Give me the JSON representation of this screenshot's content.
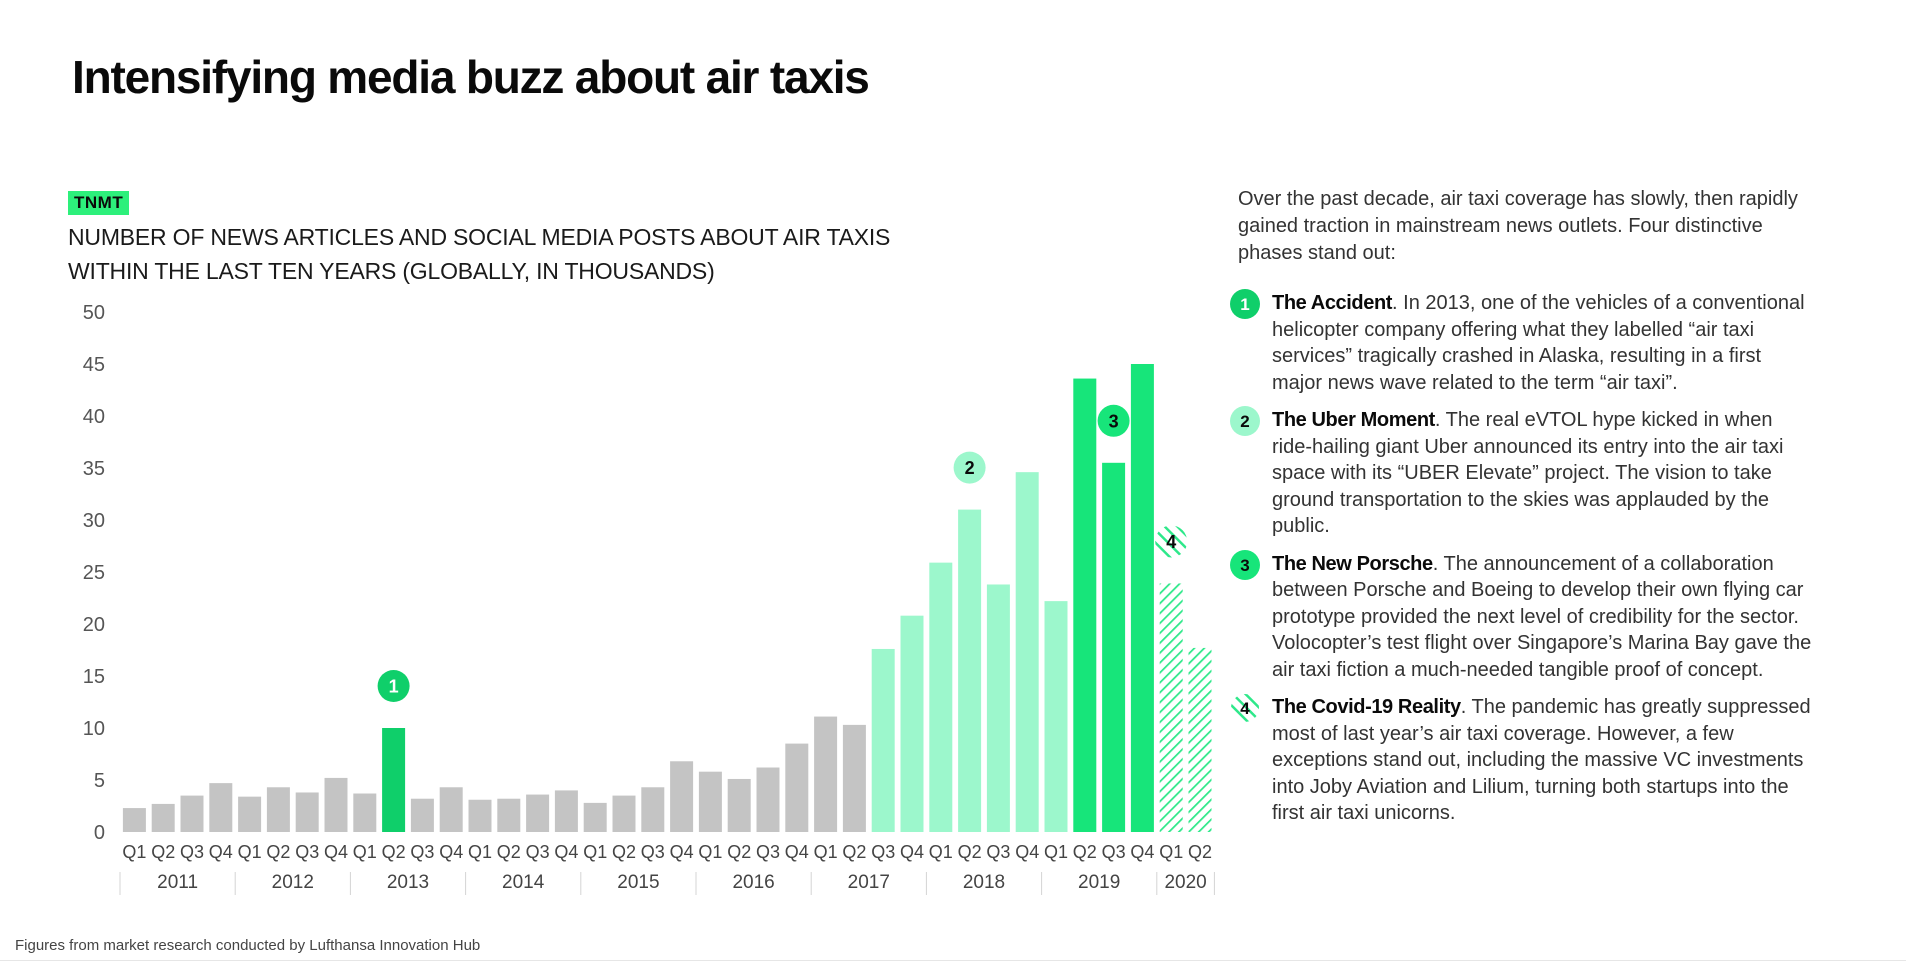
{
  "title": "Intensifying media buzz about air taxis",
  "brand": "TNMT",
  "colors": {
    "gray": "#c4c4c4",
    "phase1": "#0fcf6a",
    "phase2": "#9cf7cc",
    "phase3": "#17e57a",
    "phase4": "#2ee88a"
  },
  "chart_data": {
    "type": "bar",
    "title": "NUMBER OF NEWS ARTICLES AND SOCIAL MEDIA POSTS ABOUT AIR TAXIS WITHIN THE LAST TEN YEARS (GLOBALLY, IN THOUSANDS)",
    "ylim": [
      0,
      50
    ],
    "yticks": [
      0,
      5,
      10,
      15,
      20,
      25,
      30,
      35,
      40,
      45,
      50
    ],
    "grid": false,
    "categories": [
      "Q1",
      "Q2",
      "Q3",
      "Q4",
      "Q1",
      "Q2",
      "Q3",
      "Q4",
      "Q1",
      "Q2",
      "Q3",
      "Q4",
      "Q1",
      "Q2",
      "Q3",
      "Q4",
      "Q1",
      "Q2",
      "Q3",
      "Q4",
      "Q1",
      "Q2",
      "Q3",
      "Q4",
      "Q1",
      "Q2",
      "Q3",
      "Q4",
      "Q1",
      "Q2",
      "Q3",
      "Q4",
      "Q1",
      "Q2",
      "Q3",
      "Q4",
      "Q1",
      "Q2"
    ],
    "years": [
      {
        "label": "2011",
        "start": 0,
        "count": 4
      },
      {
        "label": "2012",
        "start": 4,
        "count": 4
      },
      {
        "label": "2013",
        "start": 8,
        "count": 4
      },
      {
        "label": "2014",
        "start": 12,
        "count": 4
      },
      {
        "label": "2015",
        "start": 16,
        "count": 4
      },
      {
        "label": "2016",
        "start": 20,
        "count": 4
      },
      {
        "label": "2017",
        "start": 24,
        "count": 4
      },
      {
        "label": "2018",
        "start": 28,
        "count": 4
      },
      {
        "label": "2019",
        "start": 32,
        "count": 4
      },
      {
        "label": "2020",
        "start": 36,
        "count": 2
      }
    ],
    "values": [
      2.3,
      2.7,
      3.5,
      4.7,
      3.4,
      4.3,
      3.8,
      5.2,
      3.7,
      10.0,
      3.2,
      4.3,
      3.1,
      3.2,
      3.6,
      4.0,
      2.8,
      3.5,
      4.3,
      6.8,
      5.8,
      5.1,
      6.2,
      8.5,
      11.1,
      10.3,
      17.6,
      20.8,
      25.9,
      31.0,
      23.8,
      34.6,
      22.2,
      43.6,
      35.5,
      45.0,
      23.9,
      17.7
    ],
    "phase_of_bar": [
      0,
      0,
      0,
      0,
      0,
      0,
      0,
      0,
      0,
      1,
      0,
      0,
      0,
      0,
      0,
      0,
      0,
      0,
      0,
      0,
      0,
      0,
      0,
      0,
      0,
      0,
      2,
      2,
      2,
      2,
      2,
      2,
      2,
      3,
      3,
      3,
      4,
      4
    ],
    "markers": [
      {
        "label": "1",
        "bar": 9,
        "style": "solid-dark"
      },
      {
        "label": "2",
        "bar": 29,
        "style": "solid-light"
      },
      {
        "label": "3",
        "bar": 34,
        "style": "solid-bright"
      },
      {
        "label": "4",
        "bar": 36,
        "style": "hatched"
      }
    ]
  },
  "intro": "Over the past decade, air taxi coverage has slowly, then rapidly gained traction in mainstream news outlets. Four distinctive phases stand out:",
  "phases": [
    {
      "num": "1",
      "title": "The Accident",
      "text": ". In 2013, one of the vehicles of a conventional helicopter company offering what they labelled “air taxi services” tragically crashed in Alaska, resulting in a first major news wave related to the term “air taxi”."
    },
    {
      "num": "2",
      "title": "The Uber Moment",
      "text": ". The real eVTOL hype kicked in when ride-hailing giant Uber announced its entry into the air taxi space with its “UBER Elevate” project. The vision to take ground transportation to the skies was applauded by the public."
    },
    {
      "num": "3",
      "title": "The New Porsche",
      "text": ". The announcement of a collaboration between Porsche and Boeing to develop their own flying car prototype provided the next level of credibility for the sector. Volocopter’s test flight over Singapore’s Marina Bay gave the air taxi fiction a much-needed tangible proof of concept."
    },
    {
      "num": "4",
      "title": "The Covid-19 Reality",
      "text": ". The pandemic has greatly suppressed most of last year’s air taxi coverage. However, a few exceptions stand out, including the massive VC investments into Joby Aviation and Lilium, turning both startups into the first air taxi unicorns."
    }
  ],
  "footnote": "Figures from market research conducted by Lufthansa Innovation Hub"
}
